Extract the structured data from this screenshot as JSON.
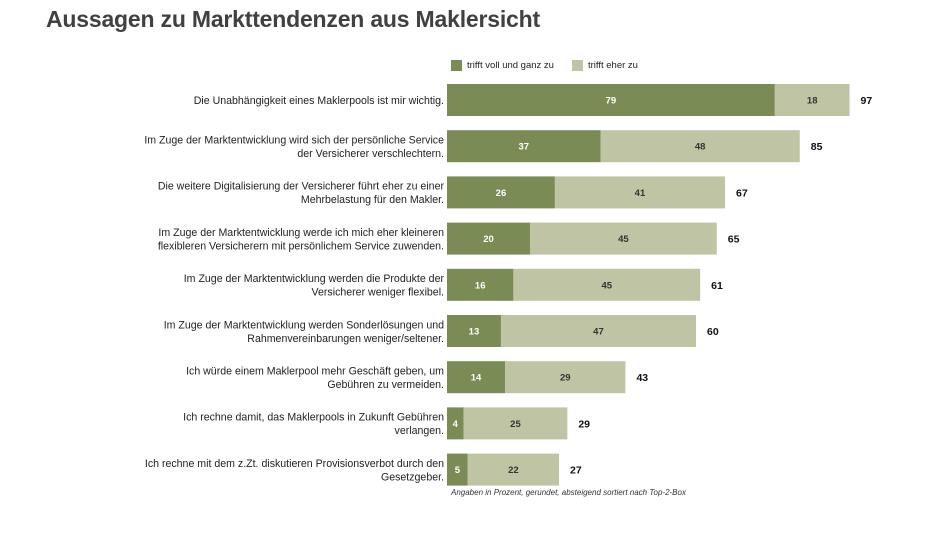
{
  "page": {
    "title": "Aussagen zu Markttendenzen aus Maklersicht",
    "footnote": "Angaben in Prozent, gerundet, absteigend sortiert nach Top-2-Box"
  },
  "colors": {
    "dark": "#7a8b56",
    "light": "#bfc4a4",
    "text": "#222222"
  },
  "chart_data": {
    "type": "bar",
    "orientation": "horizontal",
    "stacked": true,
    "title": "Aussagen zu Markttendenzen aus Maklersicht",
    "categories": [
      [
        "Die Unabhängigkeit eines Maklerpools ist mir wichtig."
      ],
      [
        "Im Zuge der Marktentwicklung wird sich der persönliche Service",
        "der Versicherer verschlechtern."
      ],
      [
        "Die weitere Digitalisierung der Versicherer führt eher zu einer",
        "Mehrbelastung für den Makler."
      ],
      [
        "Im Zuge der Marktentwicklung werde ich mich eher kleineren",
        "flexibleren Versicherern mit persönlichem Service  zuwenden."
      ],
      [
        "Im Zuge der Marktentwicklung werden die Produkte der",
        "Versicherer weniger flexibel."
      ],
      [
        "Im Zuge der Marktentwicklung werden Sonderlösungen und",
        "Rahmenvereinbarungen weniger/seltener."
      ],
      [
        "Ich würde einem Maklerpool mehr Geschäft geben, um",
        "Gebühren zu vermeiden."
      ],
      [
        "Ich rechne damit, das Maklerpools in Zukunft Gebühren",
        "verlangen."
      ],
      [
        "Ich rechne mit dem z.Zt. diskutieren Provisionsverbot durch den",
        "Gesetzgeber."
      ]
    ],
    "series": [
      {
        "name": "trifft voll und ganz zu",
        "values": [
          79,
          37,
          26,
          20,
          16,
          13,
          14,
          4,
          5
        ]
      },
      {
        "name": "trifft eher zu",
        "values": [
          18,
          48,
          41,
          45,
          45,
          47,
          29,
          25,
          22
        ]
      }
    ],
    "totals": [
      97,
      85,
      67,
      65,
      61,
      60,
      43,
      29,
      27
    ],
    "xlim": [
      0,
      100
    ]
  }
}
